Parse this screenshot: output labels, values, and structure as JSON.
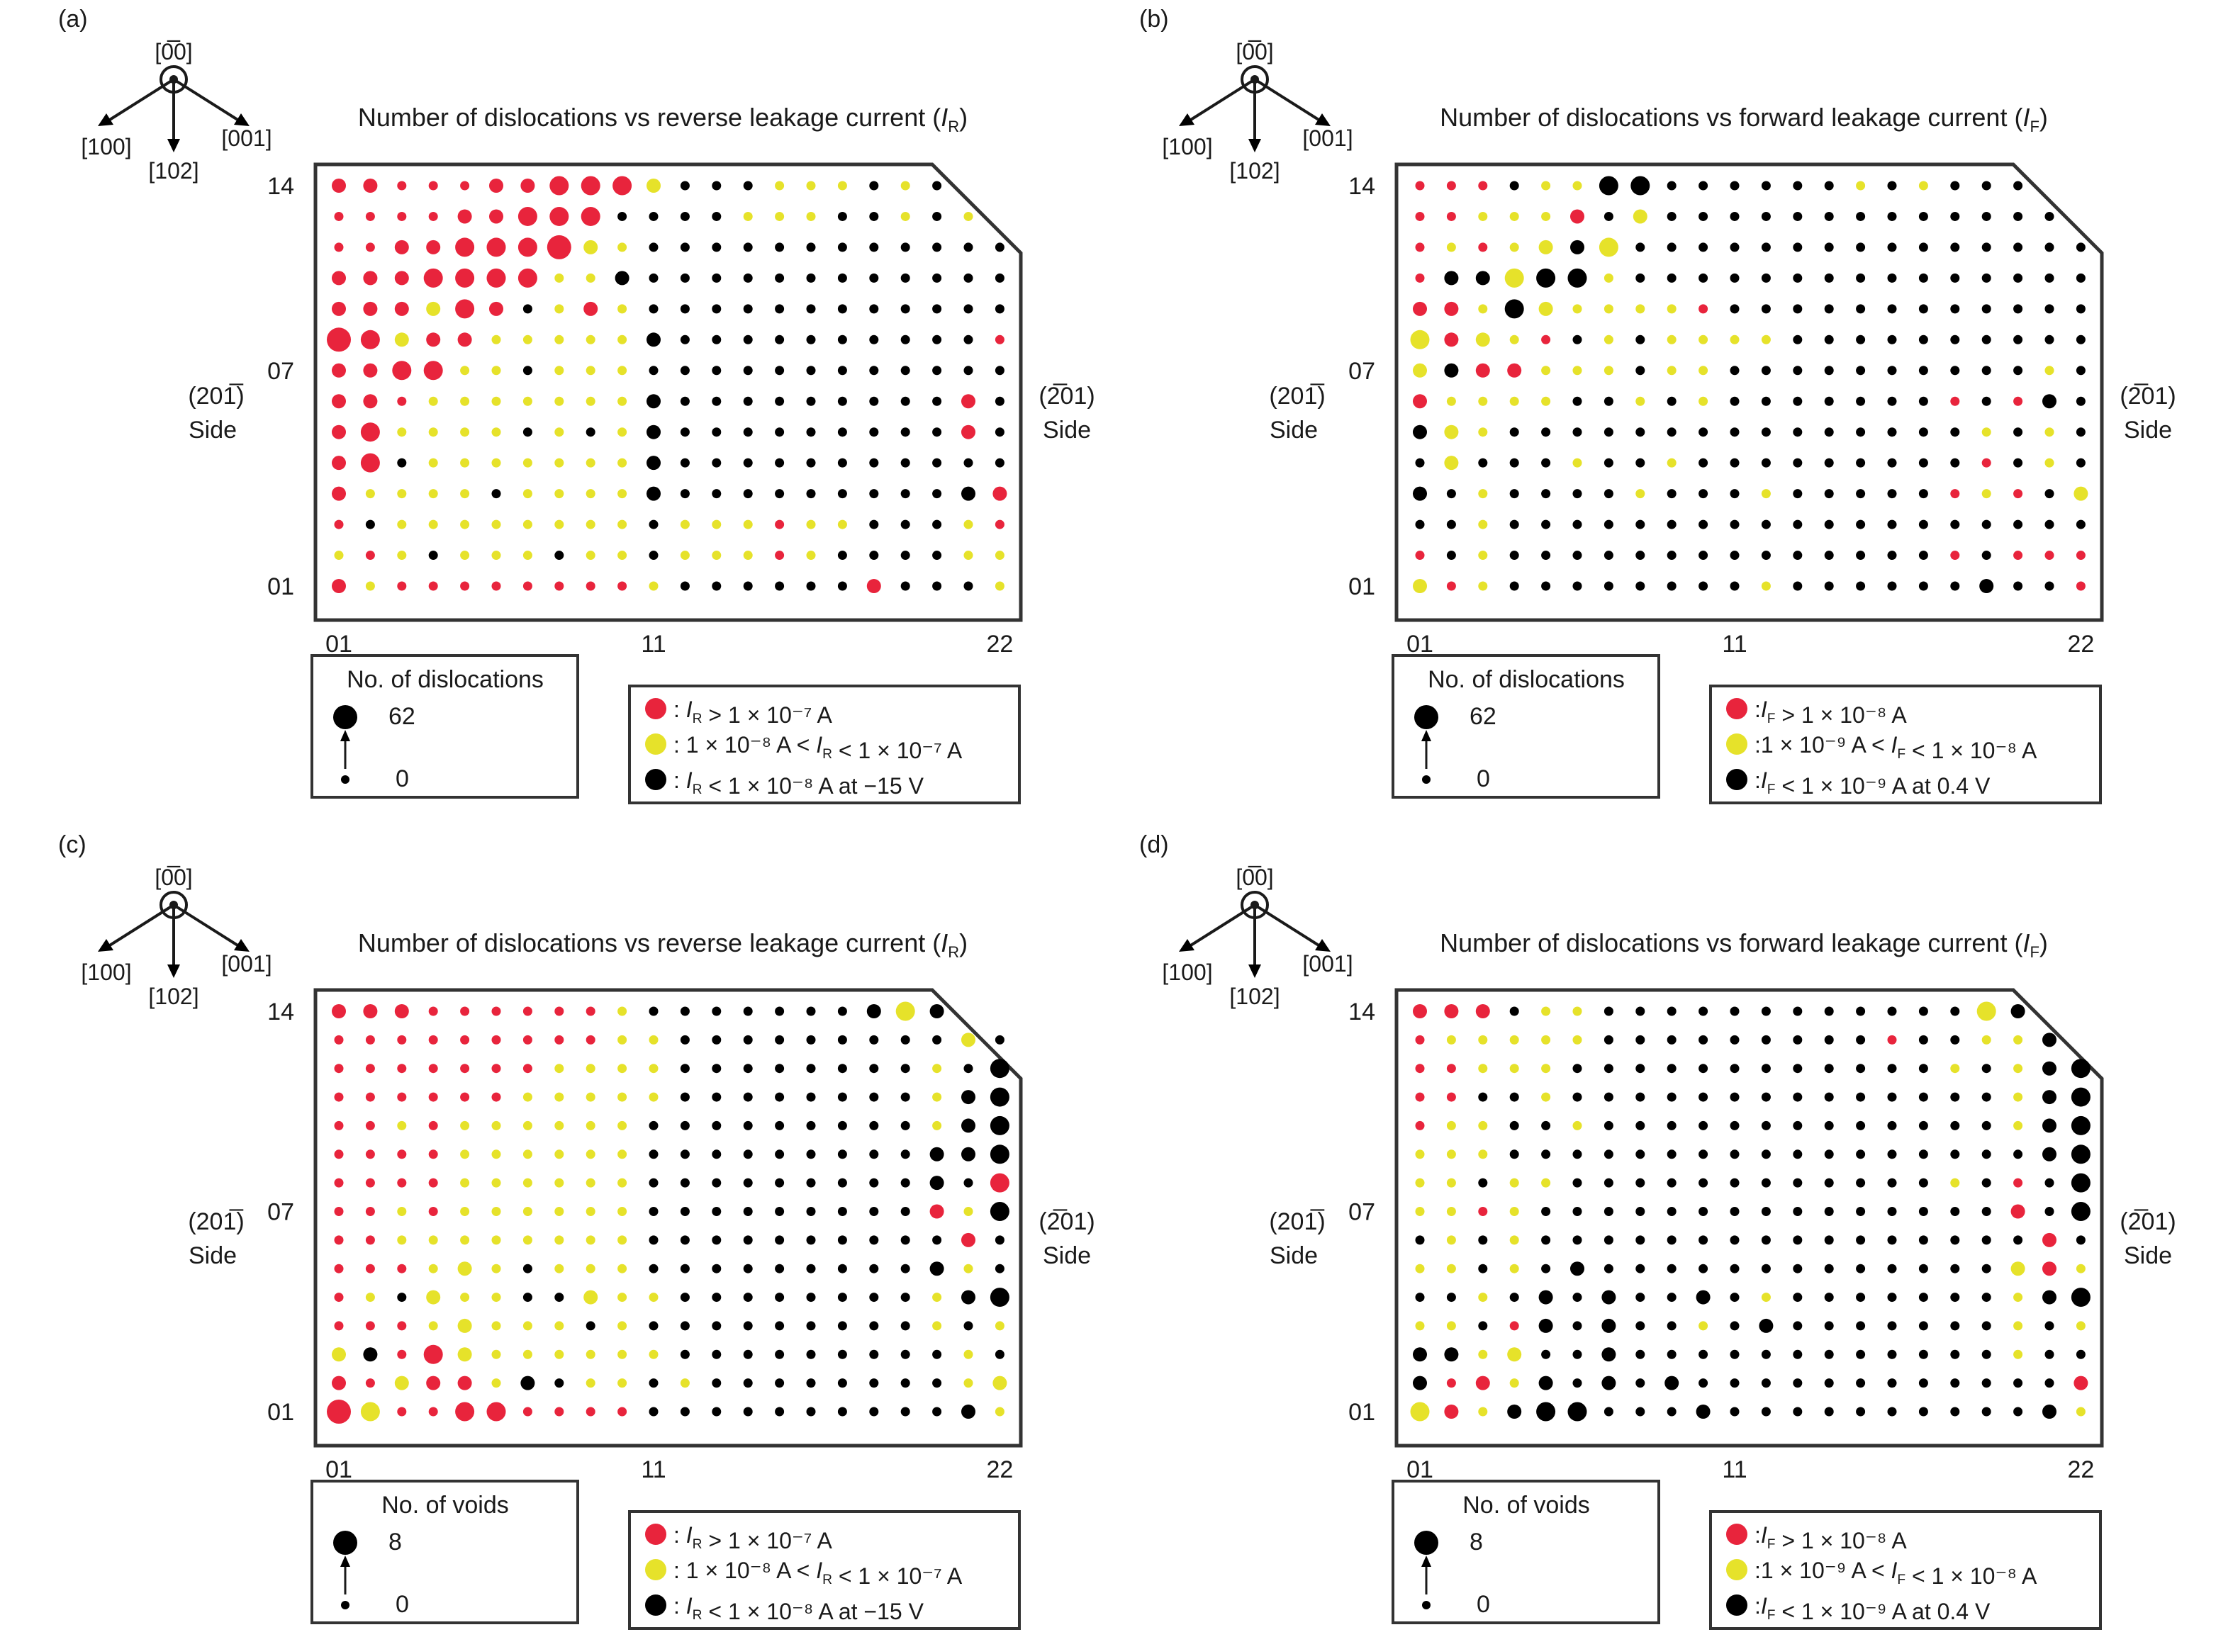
{
  "panels": [
    {
      "letter": "(a)",
      "title_prefix": "Number of dislocations vs reverse leakage current (",
      "title_sym": "I",
      "title_sub": "R",
      "title_suffix": ")",
      "axes": {
        "dir_top": "[0̅0]",
        "dir_left": "[100]",
        "dir_right": "[001]",
        "dir_down": "[102]"
      },
      "left_side": {
        "line1": "(201̅)",
        "line2": "Side"
      },
      "right_side": {
        "line1": "(2̅01)",
        "line2": "Side"
      },
      "y_ticks": [
        "14",
        "07",
        "01"
      ],
      "x_ticks": [
        "01",
        "11",
        "22"
      ],
      "size_legend": {
        "title": "No. of dislocations",
        "max": "62",
        "min": "0"
      },
      "color_legend": [
        {
          "text": ": I_R > 1 × 10⁻⁷ A",
          "color": "#e8243c"
        },
        {
          "text": ": 1 × 10⁻⁸ A < I_R < 1 × 10⁻⁷ A",
          "color": "#e6e22a"
        },
        {
          "text": ": I_R < 1 × 10⁻⁸ A at −15 V",
          "color": "#000000"
        }
      ]
    },
    {
      "letter": "(b)",
      "title_prefix": "Number of dislocations vs forward leakage current (",
      "title_sym": "I",
      "title_sub": "F",
      "title_suffix": ")",
      "axes": {
        "dir_top": "[0̅0]",
        "dir_left": "[100]",
        "dir_right": "[001]",
        "dir_down": "[102]"
      },
      "left_side": {
        "line1": "(201̅)",
        "line2": "Side"
      },
      "right_side": {
        "line1": "(2̅01)",
        "line2": "Side"
      },
      "y_ticks": [
        "14",
        "07",
        "01"
      ],
      "x_ticks": [
        "01",
        "11",
        "22"
      ],
      "size_legend": {
        "title": "No. of dislocations",
        "max": "62",
        "min": "0"
      },
      "color_legend": [
        {
          "text": ":I_F > 1 × 10⁻⁸ A",
          "color": "#e8243c"
        },
        {
          "text": ":1 × 10⁻⁹ A < I_F < 1 × 10⁻⁸ A",
          "color": "#e6e22a"
        },
        {
          "text": ":I_F < 1 × 10⁻⁹ A at 0.4 V",
          "color": "#000000"
        }
      ]
    },
    {
      "letter": "(c)",
      "title_prefix": "Number of dislocations vs reverse leakage current (",
      "title_sym": "I",
      "title_sub": "R",
      "title_suffix": ")",
      "axes": {
        "dir_top": "[0̅0]",
        "dir_left": "[100]",
        "dir_right": "[001]",
        "dir_down": "[102]"
      },
      "left_side": {
        "line1": "(201̅)",
        "line2": "Side"
      },
      "right_side": {
        "line1": "(2̅01)",
        "line2": "Side"
      },
      "y_ticks": [
        "14",
        "07",
        "01"
      ],
      "x_ticks": [
        "01",
        "11",
        "22"
      ],
      "size_legend": {
        "title": "No. of voids",
        "max": "8",
        "min": "0"
      },
      "color_legend": [
        {
          "text": ": I_R > 1 × 10⁻⁷ A",
          "color": "#e8243c"
        },
        {
          "text": ": 1 × 10⁻⁸ A < I_R < 1 × 10⁻⁷ A",
          "color": "#e6e22a"
        },
        {
          "text": ": I_R < 1 × 10⁻⁸ A at −15 V",
          "color": "#000000"
        }
      ]
    },
    {
      "letter": "(d)",
      "title_prefix": "Number of dislocations vs forward leakage current (",
      "title_sym": "I",
      "title_sub": "F",
      "title_suffix": ")",
      "axes": {
        "dir_top": "[0̅0]",
        "dir_left": "[100]",
        "dir_right": "[001]",
        "dir_down": "[102]"
      },
      "left_side": {
        "line1": "(201̅)",
        "line2": "Side"
      },
      "right_side": {
        "line1": "(2̅01)",
        "line2": "Side"
      },
      "y_ticks": [
        "14",
        "07",
        "01"
      ],
      "x_ticks": [
        "01",
        "11",
        "22"
      ],
      "size_legend": {
        "title": "No. of voids",
        "max": "8",
        "min": "0"
      },
      "color_legend": [
        {
          "text": ":I_F > 1 × 10⁻⁸ A",
          "color": "#e8243c"
        },
        {
          "text": ":1 × 10⁻⁹ A < I_F < 1 × 10⁻⁸ A",
          "color": "#e6e22a"
        },
        {
          "text": ":I_F < 1 × 10⁻⁹ A at 0.4 V",
          "color": "#000000"
        }
      ]
    }
  ],
  "chart_data": [
    {
      "type": "scatter",
      "title": "Number of dislocations vs reverse leakage current (I_R)",
      "xlim": [
        1,
        22
      ],
      "ylim": [
        1,
        14
      ],
      "size_range": [
        0,
        62
      ],
      "color_code": {
        "r": "#e8243c",
        "y": "#e6e22a",
        "k": "#000000"
      },
      "size_scale": [
        0,
        10,
        25,
        40,
        62
      ],
      "rows_top_to_bottom": [
        "r2r2r1r1r1r2r2r3r3r3y2k1k1k1y1y1y1k1y1k1",
        "r1r1r1r1r2r2r3r3r3k1k1k1k1y1y1y1k1k1y1k1y1",
        "r1r1r2r2r3r3r3r4y2y1k1k1k1k1k1k1k1k1k1k1k1k1",
        "r2r2r2r3r3r3r3y1y1k2k1k1k1k1k1k1k1k1k1k1k1k1",
        "r2r2r2y2r3r2k1y1r2y1k1k1k1k1k1k1k1k1k1k1k1k1",
        "r4r3y2r2r2y1y1y1y1y1k2k1k1k1k1k1k1k1k1k1k1r1",
        "r2r2r3r3y1y1k1y1y1y1k1k1k1k1k1k1k1k1k1k1k1k1",
        "r2r2r1y1y1y1y1y1y1y1k2k1k1k1k1k1k1k1k1k1r2k1",
        "r2r3y1y1y1y1k1y1k1y1k2k1k1k1k1k1k1k1k1k1r2k1",
        "r2r3k1y1y1y1y1y1y1y1k2k1k1k1k1k1k1k1k1k1k1k1",
        "r2y1y1y1y1k1y1y1y1y1k2k1k1k1k1k1k1k1k1k1k2r2",
        "r1k1y1y1y1y1y1y1y1y1k1y1y1y1r1y1y1k1k1k1y1r1",
        "y1r1y1k1y1y1y1k1y1y1k1y1y1y1r1y1k1k1k1k1y1y1",
        "r2y1r1r1r1r1r1r1r1r1y1k1k1k1k1k1k1r2k1k1k1y1"
      ]
    },
    {
      "type": "scatter",
      "title": "Number of dislocations vs forward leakage current (I_F)",
      "xlim": [
        1,
        22
      ],
      "ylim": [
        1,
        14
      ],
      "size_range": [
        0,
        62
      ],
      "color_code": {
        "r": "#e8243c",
        "y": "#e6e22a",
        "k": "#000000"
      },
      "size_scale": [
        0,
        10,
        25,
        40,
        62
      ],
      "rows_top_to_bottom": [
        "r1r1r1k1y1y1k3k3k1k1k1k1k1k1y1k1y1k1k1k1",
        "r1r1y1y1y1r2k1y2k1k1k1k1k1k1k1k1k1k1k1k1k1",
        "r1y1r1y1y2k2y3k1k1k1k1k1k1k1k1k1k1k1k1k1k1k1",
        "r1k2k2y3k3k3y1k1k1k1k1k1k1k1k1k1k1k1k1k1k1k1",
        "r2r2y1k3y2y1y1y1y1r1k1k1k1k1k1k1k1k1k1k1k1k1",
        "y3r2y2y1r1k1y1k1y1y1y1y1k1k1k1k1k1k1k1k1k1k1",
        "y2k2r2r2y1y1y1k1y1y1k1k1k1k1k1k1k1k1k1k1y1k1",
        "r2y1y1y1y1k1k1y1k1y1k1k1k1k1k1k1k1r1k1r1k2k1",
        "k2y2y1k1k1k1k1k1k1k1k1k1k1k1k1k1k1k1y1k1y1k1",
        "k1y2k1k1k1y1k1k1y1k1k1k1k1k1k1k1k1k1r1k1y1k1",
        "k2k1y1k1k1k1k1y1k1k1k1y1k1k1k1k1k1r1y1r1k1y2",
        "k1k1y1k1k1k1k1k1k1k1k1k1k1k1k1k1k1k1k1k1k1k1",
        "r1k1y1k1k1k1k1k1k1k1k1k1k1k1k1k1k1r1k1r1r1r1",
        "y2r1y1k1k1k1k1k1k1k1k1y1k1k1k1k1k1k1k2k1k1r1"
      ]
    },
    {
      "type": "scatter",
      "title": "Number of dislocations vs reverse leakage current (I_R)",
      "xlim": [
        1,
        22
      ],
      "ylim": [
        1,
        14
      ],
      "size_range": [
        0,
        8
      ],
      "color_code": {
        "r": "#e8243c",
        "y": "#e6e22a",
        "k": "#000000"
      },
      "size_scale": [
        0,
        2,
        3,
        5,
        8
      ],
      "rows_top_to_bottom": [
        "r2r2r2r1r1r1r1r1r1y1k1k1k1k1k1k1k1k2y3k2",
        "r1r1r1r1r1r1r1r1r1y1y1k1k1k1k1k1k1k1k1k1y2k1",
        "r1r1r1r1r1r1r1y1y1y1y1k1k1k1k1k1k1k1k1y1k1k3",
        "r1r1r1r1r1r1y1y1y1y1y1k1k1k1k1k1k1k1k1y1k2k3",
        "r1r1y1r1y1y1y1y1y1y1k1k1k1k1k1k1k1k1k1y1k2k3",
        "r1r1r1r1y1y1y1y1y1y1k1k1k1k1k1k1k1k1k1k2k2k3",
        "r1r1r1r1y1y1y1y1y1y1k1k1k1k1k1k1k1k1k1k2k1r3",
        "r1r1y1r1y1y1y1y1y1y1k1k1k1k1k1k1k1k1k1r2y1k3",
        "r1r1y1y1y1y1y1y1y1y1k1k1k1k1k1k1k1k1k1k1r2k1",
        "r1r1r1y1y2y1k1y1y1y1k1k1k1k1k1k1k1k1k1k2y1k1",
        "r1y1k1y2y1y1k1k1y2y1y1k1k1k1k1k1k1k1k1y1k2k3",
        "r1r1r1y1y2y1y1y1k1y1k1k1k1k1k1k1k1k1k1y1k1y1",
        "y2k2r1r3y2y1y1y1y1y1y1k1k1k1k1k1k1k1k1k1y1k1",
        "r2r1y2r2r2y1k2k1y1y1k1y1k1k1k1k1k1k1k1k1y1y2",
        "r4y3r1r1r3r3r1r1r1r1k1k1k1k1k1k1k1k1k1k1k2y1"
      ]
    },
    {
      "type": "scatter",
      "title": "Number of dislocations vs forward leakage current (I_F)",
      "xlim": [
        1,
        22
      ],
      "ylim": [
        1,
        14
      ],
      "size_range": [
        0,
        8
      ],
      "color_code": {
        "r": "#e8243c",
        "y": "#e6e22a",
        "k": "#000000"
      },
      "size_scale": [
        0,
        2,
        3,
        5,
        8
      ],
      "rows_top_to_bottom": [
        "r2r2r2k1y1y1k1k1k1k1k1k1k1k1k1k1k1k1y3k2",
        "r1y1y1y1y1y1k1k1k1k1k1k1k1k1k1r1k1k1y1y1k2",
        "r1r1y1y1y1k1k1k1k1k1k1k1k1k1k1k1k1y1k1y1k2k3",
        "r1r1k1k1y1k1k1k1k1k1k1k1k1k1k1k1k1k1k1y1k2k3",
        "r1y1y1k1k1y1k1k1k1k1k1k1k1k1k1k1k1k1k1y1k2k3",
        "y1y1y1k1k1k1k1k1k1k1k1k1k1k1k1k1k1k1k1k1k2k3",
        "y1y1k1y1y1k1k1k1k1k1k1k1k1k1k1k1k1y1k1r1k1k3",
        "y1y1r1y1k1k1k1k1k1k1k1k1k1k1k1k1k1k1k1r2k1k3",
        "k1y1k1y1k1k1k1k1k1k1k1k1k1k1k1k1k1k1k1k1r2k1",
        "y1y1k1y1k1k2k1k1k1k1k1k1k1k1k1k1k1k1k1y2r2y1",
        "k1k1y1k1k2k1k2k1k1k2k1y1k1k1k1k1k1k1k1y1k2k3",
        "y1y1k1r1k2k1k2k1k1y1k1k2k1k1k1k1k1k1k1y1k1y1",
        "k2k2y1y2k1k1k2k1k1k1k1k1k1k1k1k1k1k1k1y1k1k1",
        "k2r1r2y1k2k1k2k1k2k1k1k1k1k1k1k1k1k1k1k1k1r2",
        "y3r2y1k2k3k3k1k1k1k2k1k1k1k1k1k1k1k1k1k1k2y1"
      ]
    }
  ]
}
